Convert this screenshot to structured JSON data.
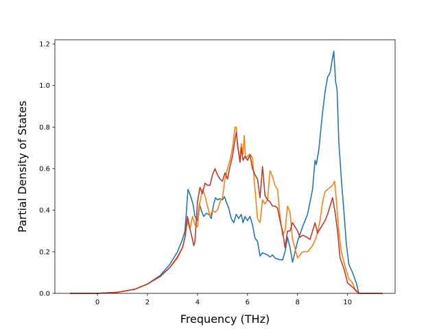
{
  "chart_data": {
    "type": "line",
    "title": "",
    "xlabel": "Frequency (THz)",
    "ylabel": "Partial Density of States",
    "xlim": [
      -1.7,
      11.9
    ],
    "ylim": [
      0,
      1.22
    ],
    "xticks": [
      0,
      2,
      4,
      6,
      8,
      10
    ],
    "yticks": [
      0.0,
      0.2,
      0.4,
      0.6,
      0.8,
      1.0,
      1.2
    ],
    "xtick_labels": [
      "0",
      "2",
      "4",
      "6",
      "8",
      "10"
    ],
    "ytick_labels": [
      "0.0",
      "0.2",
      "0.4",
      "0.6",
      "0.8",
      "1.0",
      "1.2"
    ],
    "grid": false,
    "legend": "none",
    "series": [
      {
        "color": "#1f77b4",
        "points": [
          [
            -1.1,
            0
          ],
          [
            0,
            0
          ],
          [
            0.8,
            0.005
          ],
          [
            1.5,
            0.02
          ],
          [
            2.0,
            0.045
          ],
          [
            2.5,
            0.085
          ],
          [
            2.9,
            0.14
          ],
          [
            3.2,
            0.2
          ],
          [
            3.4,
            0.26
          ],
          [
            3.5,
            0.3
          ],
          [
            3.55,
            0.38
          ],
          [
            3.62,
            0.5
          ],
          [
            3.72,
            0.47
          ],
          [
            3.82,
            0.43
          ],
          [
            3.9,
            0.37
          ],
          [
            4.0,
            0.35
          ],
          [
            4.08,
            0.43
          ],
          [
            4.15,
            0.4
          ],
          [
            4.25,
            0.37
          ],
          [
            4.35,
            0.385
          ],
          [
            4.45,
            0.38
          ],
          [
            4.55,
            0.36
          ],
          [
            4.65,
            0.43
          ],
          [
            4.72,
            0.46
          ],
          [
            4.8,
            0.45
          ],
          [
            4.9,
            0.455
          ],
          [
            5.0,
            0.45
          ],
          [
            5.08,
            0.465
          ],
          [
            5.15,
            0.44
          ],
          [
            5.25,
            0.41
          ],
          [
            5.35,
            0.36
          ],
          [
            5.45,
            0.34
          ],
          [
            5.55,
            0.38
          ],
          [
            5.65,
            0.36
          ],
          [
            5.75,
            0.38
          ],
          [
            5.82,
            0.34
          ],
          [
            5.9,
            0.37
          ],
          [
            6.0,
            0.35
          ],
          [
            6.1,
            0.37
          ],
          [
            6.2,
            0.33
          ],
          [
            6.3,
            0.265
          ],
          [
            6.4,
            0.25
          ],
          [
            6.5,
            0.18
          ],
          [
            6.6,
            0.195
          ],
          [
            6.8,
            0.185
          ],
          [
            6.9,
            0.175
          ],
          [
            7.0,
            0.185
          ],
          [
            7.1,
            0.17
          ],
          [
            7.2,
            0.165
          ],
          [
            7.4,
            0.16
          ],
          [
            7.5,
            0.2
          ],
          [
            7.6,
            0.27
          ],
          [
            7.7,
            0.22
          ],
          [
            7.8,
            0.15
          ],
          [
            8.0,
            0.25
          ],
          [
            8.2,
            0.32
          ],
          [
            8.4,
            0.38
          ],
          [
            8.6,
            0.5
          ],
          [
            8.7,
            0.64
          ],
          [
            8.75,
            0.62
          ],
          [
            8.85,
            0.69
          ],
          [
            9.0,
            0.87
          ],
          [
            9.1,
            0.97
          ],
          [
            9.2,
            1.04
          ],
          [
            9.3,
            1.06
          ],
          [
            9.38,
            1.12
          ],
          [
            9.45,
            1.165
          ],
          [
            9.52,
            1.02
          ],
          [
            9.58,
            0.98
          ],
          [
            9.65,
            0.73
          ],
          [
            9.75,
            0.55
          ],
          [
            9.85,
            0.4
          ],
          [
            9.95,
            0.24
          ],
          [
            10.05,
            0.14
          ],
          [
            10.2,
            0.1
          ],
          [
            10.35,
            0.05
          ],
          [
            10.45,
            0.0
          ],
          [
            11.4,
            0
          ]
        ]
      },
      {
        "color": "#ff7f0e",
        "points": [
          [
            -1.1,
            0
          ],
          [
            0,
            0
          ],
          [
            0.8,
            0.005
          ],
          [
            1.5,
            0.02
          ],
          [
            2.0,
            0.045
          ],
          [
            2.5,
            0.08
          ],
          [
            2.9,
            0.125
          ],
          [
            3.2,
            0.17
          ],
          [
            3.4,
            0.22
          ],
          [
            3.5,
            0.27
          ],
          [
            3.6,
            0.35
          ],
          [
            3.7,
            0.31
          ],
          [
            3.8,
            0.37
          ],
          [
            3.9,
            0.33
          ],
          [
            4.0,
            0.32
          ],
          [
            4.1,
            0.44
          ],
          [
            4.2,
            0.5
          ],
          [
            4.3,
            0.47
          ],
          [
            4.4,
            0.42
          ],
          [
            4.5,
            0.37
          ],
          [
            4.6,
            0.4
          ],
          [
            4.7,
            0.39
          ],
          [
            4.8,
            0.4
          ],
          [
            4.9,
            0.44
          ],
          [
            5.0,
            0.46
          ],
          [
            5.1,
            0.55
          ],
          [
            5.2,
            0.6
          ],
          [
            5.3,
            0.64
          ],
          [
            5.4,
            0.7
          ],
          [
            5.5,
            0.8
          ],
          [
            5.55,
            0.8
          ],
          [
            5.6,
            0.71
          ],
          [
            5.7,
            0.64
          ],
          [
            5.75,
            0.72
          ],
          [
            5.82,
            0.67
          ],
          [
            5.87,
            0.76
          ],
          [
            5.92,
            0.65
          ],
          [
            6.0,
            0.66
          ],
          [
            6.1,
            0.67
          ],
          [
            6.2,
            0.65
          ],
          [
            6.3,
            0.5
          ],
          [
            6.4,
            0.36
          ],
          [
            6.5,
            0.34
          ],
          [
            6.6,
            0.45
          ],
          [
            6.7,
            0.43
          ],
          [
            6.8,
            0.45
          ],
          [
            6.9,
            0.59
          ],
          [
            7.0,
            0.56
          ],
          [
            7.1,
            0.52
          ],
          [
            7.2,
            0.5
          ],
          [
            7.3,
            0.37
          ],
          [
            7.4,
            0.28
          ],
          [
            7.5,
            0.3
          ],
          [
            7.6,
            0.42
          ],
          [
            7.7,
            0.39
          ],
          [
            7.8,
            0.26
          ],
          [
            8.0,
            0.17
          ],
          [
            8.2,
            0.2
          ],
          [
            8.4,
            0.2
          ],
          [
            8.6,
            0.23
          ],
          [
            8.75,
            0.27
          ],
          [
            8.9,
            0.35
          ],
          [
            9.0,
            0.44
          ],
          [
            9.1,
            0.49
          ],
          [
            9.2,
            0.5
          ],
          [
            9.3,
            0.51
          ],
          [
            9.4,
            0.52
          ],
          [
            9.48,
            0.54
          ],
          [
            9.55,
            0.45
          ],
          [
            9.65,
            0.3
          ],
          [
            9.75,
            0.2
          ],
          [
            9.9,
            0.13
          ],
          [
            10.05,
            0.07
          ],
          [
            10.2,
            0.05
          ],
          [
            10.3,
            0.02
          ],
          [
            10.45,
            0.0
          ],
          [
            11.4,
            0
          ]
        ]
      },
      {
        "color": "#c0392b",
        "points": [
          [
            -1.1,
            0
          ],
          [
            0,
            0
          ],
          [
            0.8,
            0.005
          ],
          [
            1.5,
            0.02
          ],
          [
            2.0,
            0.045
          ],
          [
            2.5,
            0.08
          ],
          [
            2.9,
            0.125
          ],
          [
            3.2,
            0.175
          ],
          [
            3.4,
            0.22
          ],
          [
            3.5,
            0.27
          ],
          [
            3.6,
            0.37
          ],
          [
            3.7,
            0.31
          ],
          [
            3.8,
            0.26
          ],
          [
            3.85,
            0.23
          ],
          [
            3.9,
            0.25
          ],
          [
            4.0,
            0.44
          ],
          [
            4.1,
            0.51
          ],
          [
            4.2,
            0.48
          ],
          [
            4.3,
            0.53
          ],
          [
            4.4,
            0.52
          ],
          [
            4.5,
            0.52
          ],
          [
            4.6,
            0.57
          ],
          [
            4.7,
            0.6
          ],
          [
            4.8,
            0.57
          ],
          [
            4.9,
            0.55
          ],
          [
            5.0,
            0.54
          ],
          [
            5.1,
            0.58
          ],
          [
            5.2,
            0.55
          ],
          [
            5.3,
            0.61
          ],
          [
            5.4,
            0.66
          ],
          [
            5.5,
            0.74
          ],
          [
            5.55,
            0.775
          ],
          [
            5.6,
            0.72
          ],
          [
            5.7,
            0.63
          ],
          [
            5.75,
            0.7
          ],
          [
            5.82,
            0.64
          ],
          [
            5.9,
            0.66
          ],
          [
            6.0,
            0.64
          ],
          [
            6.1,
            0.665
          ],
          [
            6.2,
            0.6
          ],
          [
            6.3,
            0.57
          ],
          [
            6.4,
            0.55
          ],
          [
            6.5,
            0.46
          ],
          [
            6.6,
            0.61
          ],
          [
            6.7,
            0.47
          ],
          [
            6.8,
            0.45
          ],
          [
            6.9,
            0.44
          ],
          [
            7.0,
            0.42
          ],
          [
            7.1,
            0.42
          ],
          [
            7.2,
            0.41
          ],
          [
            7.3,
            0.35
          ],
          [
            7.4,
            0.3
          ],
          [
            7.5,
            0.22
          ],
          [
            7.6,
            0.3
          ],
          [
            7.7,
            0.3
          ],
          [
            7.8,
            0.34
          ],
          [
            8.0,
            0.3
          ],
          [
            8.1,
            0.27
          ],
          [
            8.2,
            0.28
          ],
          [
            8.3,
            0.275
          ],
          [
            8.5,
            0.26
          ],
          [
            8.6,
            0.3
          ],
          [
            8.7,
            0.34
          ],
          [
            8.8,
            0.29
          ],
          [
            9.0,
            0.33
          ],
          [
            9.1,
            0.35
          ],
          [
            9.2,
            0.38
          ],
          [
            9.3,
            0.42
          ],
          [
            9.4,
            0.46
          ],
          [
            9.5,
            0.39
          ],
          [
            9.6,
            0.3
          ],
          [
            9.7,
            0.17
          ],
          [
            9.85,
            0.12
          ],
          [
            10.0,
            0.05
          ],
          [
            10.2,
            0.03
          ],
          [
            10.35,
            0.01
          ],
          [
            10.45,
            0.0
          ],
          [
            11.4,
            0
          ]
        ]
      }
    ]
  }
}
